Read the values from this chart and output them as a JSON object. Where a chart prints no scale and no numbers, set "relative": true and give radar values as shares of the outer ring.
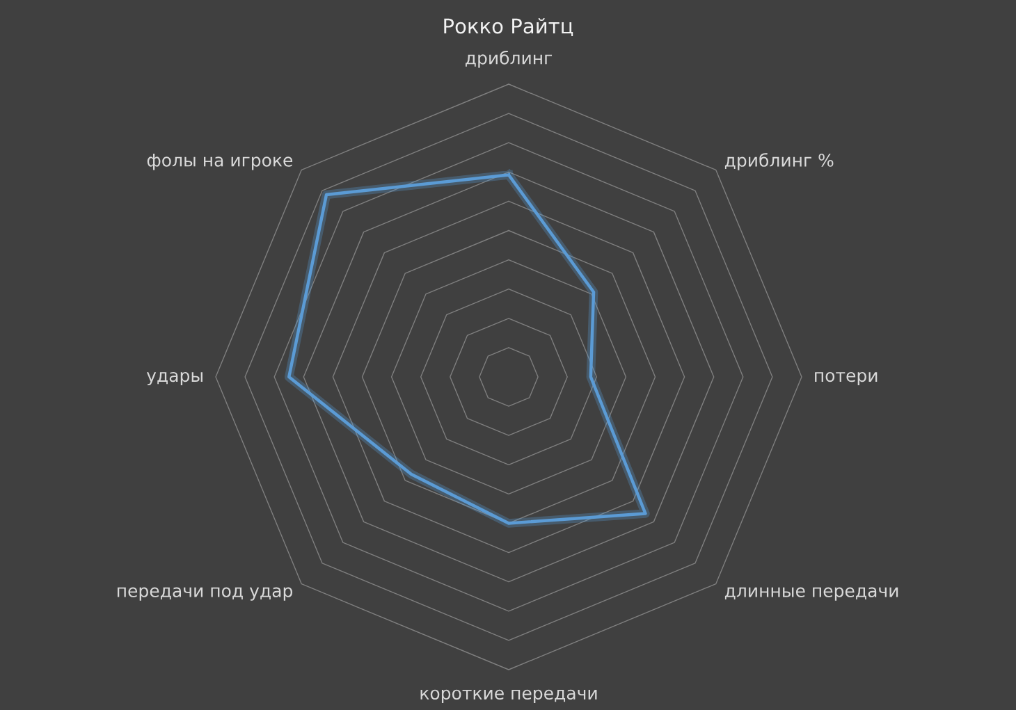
{
  "chart_data": {
    "type": "radar",
    "title": "Рокко Райтц",
    "categories": [
      "дриблинг",
      "дриблинг %",
      "потери",
      "длинные передачи",
      "короткие передачи",
      "передачи под удар",
      "удары",
      "фолы на игроке"
    ],
    "relative": true,
    "grid": true,
    "series": [
      {
        "color": "#5b9bd5",
        "values": [
          0.69,
          0.41,
          0.28,
          0.66,
          0.5,
          0.47,
          0.75,
          0.88
        ]
      }
    ]
  }
}
